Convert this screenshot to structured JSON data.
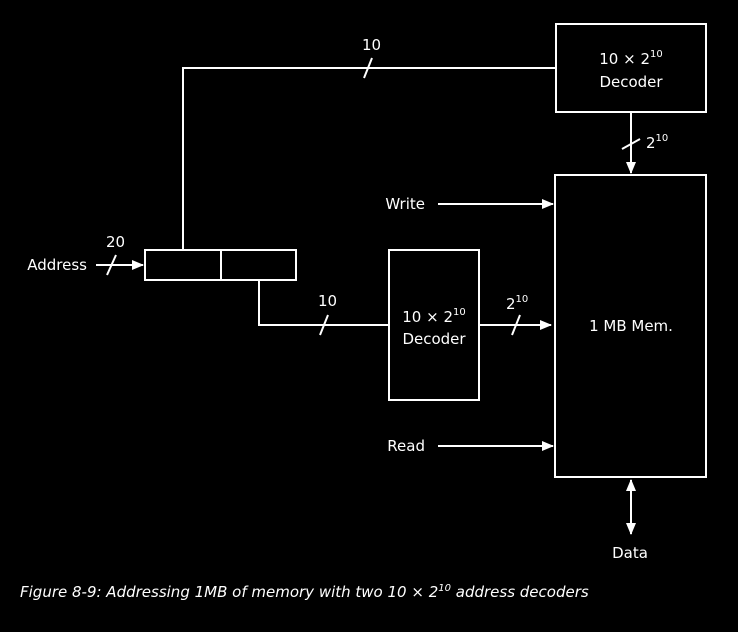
{
  "colors": {
    "background": "#000000",
    "foreground": "#ffffff"
  },
  "diagram": {
    "top_bus_width": "10",
    "top_decoder": {
      "line1_base": "10 × 2",
      "line1_exp": "10",
      "line2": "Decoder"
    },
    "top_decoder_out": {
      "base": "2",
      "exp": "10"
    },
    "write_label": "Write",
    "address_label": "Address",
    "address_width": "20",
    "lower_bus_width": "10",
    "mid_decoder": {
      "line1_base": "10 × 2",
      "line1_exp": "10",
      "line2": "Decoder"
    },
    "mid_decoder_out": {
      "base": "2",
      "exp": "10"
    },
    "memory_label": "1 MB Mem.",
    "read_label": "Read",
    "data_label": "Data"
  },
  "caption": {
    "prefix": "Figure 8-9: Addressing 1MB of memory with two 10 × 2",
    "exp": "10",
    "suffix": " address decoders"
  }
}
